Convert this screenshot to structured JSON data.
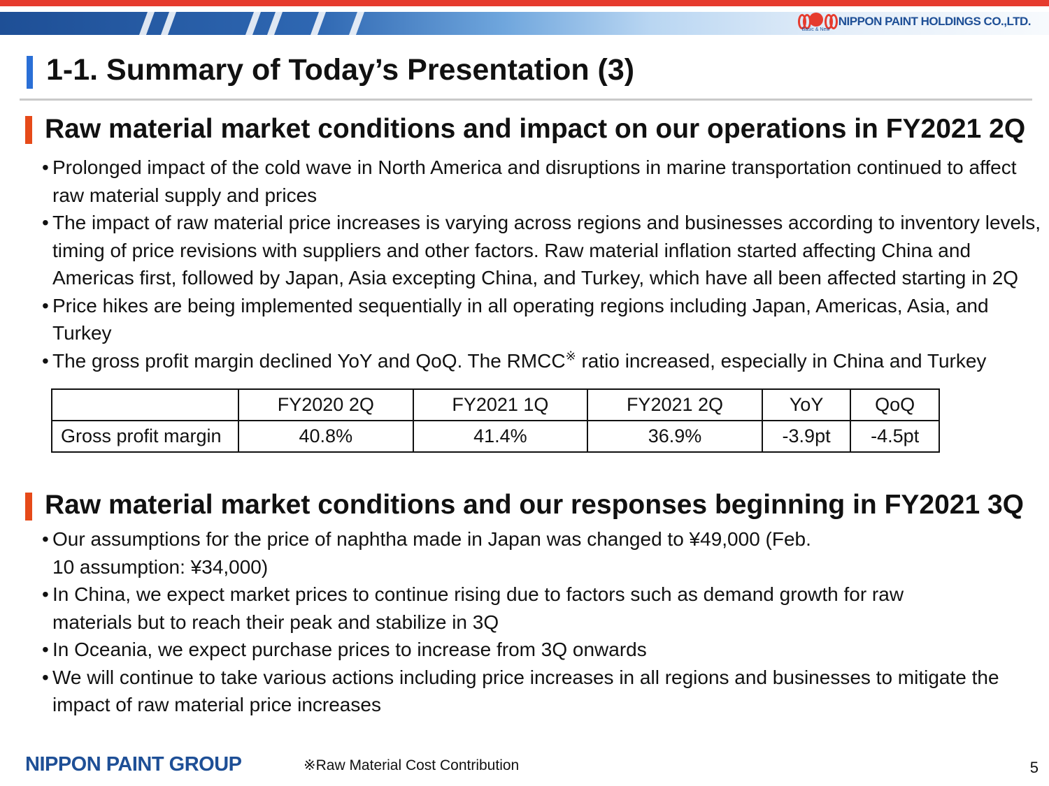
{
  "header": {
    "company_name": "NIPPON PAINT HOLDINGS CO.,LTD.",
    "logo_tagline": "Basic & New",
    "brand_color": "#1e4f96",
    "accent_color": "#e63b2e"
  },
  "title": "1-1. Summary of Today’s Presentation (3)",
  "section1": {
    "heading": "Raw material market conditions and impact on our operations in FY2021 2Q",
    "bullets": [
      "Prolonged impact of the cold wave in North America and disruptions in marine transportation continued to affect raw material supply and prices",
      "The impact of raw material price increases is varying across regions and businesses according to inventory levels, timing of price revisions with suppliers and other factors. Raw material inflation started affecting China and Americas first, followed by Japan, Asia excepting China, and Turkey, which have all been affected starting in 2Q",
      "Price hikes are being implemented sequentially in all operating regions including Japan, Americas, Asia, and Turkey"
    ],
    "bullet4": {
      "part1": "The gross profit margin declined YoY and QoQ. The RMCC",
      "mark": "※",
      "part2": " ratio increased, especially in China and Turkey"
    }
  },
  "table": {
    "headers": [
      "",
      "FY2020 2Q",
      "FY2021 1Q",
      "FY2021 2Q",
      "YoY",
      "QoQ"
    ],
    "row_label": "Gross profit margin",
    "values": [
      "40.8%",
      "41.4%",
      "36.9%",
      "-3.9pt",
      "-4.5pt"
    ]
  },
  "section2": {
    "heading": "Raw material market conditions and our responses beginning in FY2021 3Q",
    "bullets": [
      "Our assumptions for the price of naphtha made in Japan was changed to ¥49,000 (Feb. 10 assumption: ¥34,000)",
      "In China, we expect market prices to continue rising due to factors such as demand growth for raw materials but to reach their peak and stabilize in 3Q",
      "In Oceania, we expect purchase prices to increase from 3Q onwards",
      "We will continue to take various actions including price increases in all regions and businesses to mitigate the impact of raw material price increases"
    ]
  },
  "footer": {
    "brand": "NIPPON PAINT GROUP",
    "footnote": "※Raw Material Cost Contribution",
    "page_number": "5"
  }
}
